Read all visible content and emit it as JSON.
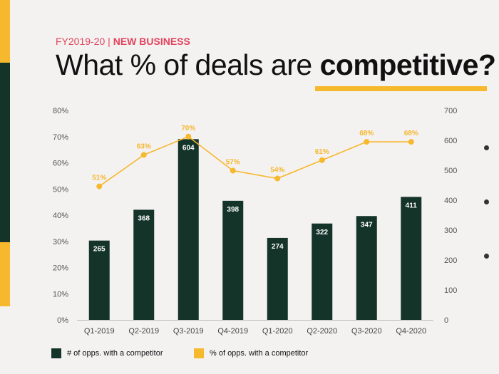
{
  "header": {
    "eyebrow_period": "FY2019-20",
    "eyebrow_sep": " | ",
    "eyebrow_topic": "NEW BUSINESS",
    "title_plain": "What % of deals are ",
    "title_bold": "competitive?"
  },
  "colors": {
    "bar": "#14342a",
    "line": "#f6b82d",
    "accent_pink": "#e2445c",
    "background": "#f4f1f1"
  },
  "chart_data": {
    "type": "bar+line",
    "categories": [
      "Q1-2019",
      "Q2-2019",
      "Q3-2019",
      "Q4-2019",
      "Q1-2020",
      "Q2-2020",
      "Q3-2020",
      "Q4-2020"
    ],
    "series": [
      {
        "name": "# of opps. with a competitor",
        "type": "bar",
        "axis": "right",
        "values": [
          265,
          368,
          604,
          398,
          274,
          322,
          347,
          411
        ]
      },
      {
        "name": "% of opps. with a competitor",
        "type": "line",
        "axis": "left",
        "values": [
          51,
          63,
          70,
          57,
          54,
          61,
          68,
          68
        ],
        "labels": [
          "51%",
          "63%",
          "70%",
          "57%",
          "54%",
          "61%",
          "68%",
          "68%"
        ]
      }
    ],
    "y_left": {
      "min": 0,
      "max": 80,
      "ticks": [
        "0%",
        "10%",
        "20%",
        "30%",
        "40%",
        "50%",
        "60%",
        "70%",
        "80%"
      ]
    },
    "y_right": {
      "min": 0,
      "max": 700,
      "ticks": [
        "0",
        "100",
        "200",
        "300",
        "400",
        "500",
        "600",
        "700"
      ]
    },
    "grid": false,
    "legend_position": "bottom-left"
  }
}
